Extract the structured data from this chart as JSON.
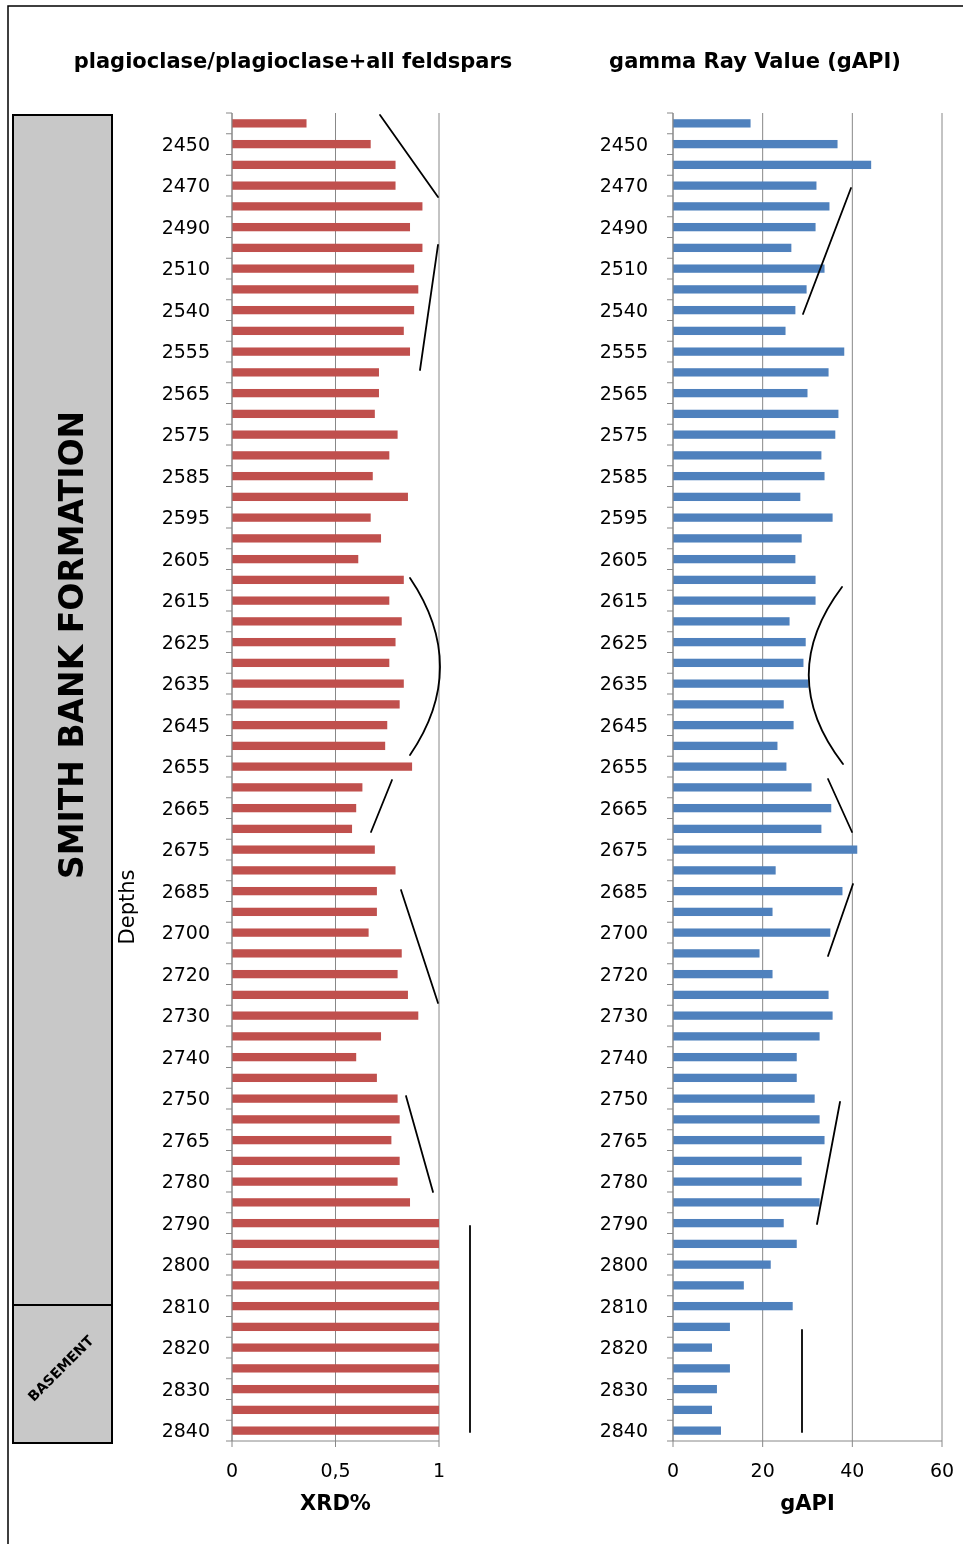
{
  "chart_data": [
    {
      "type": "bar",
      "orientation": "horizontal",
      "title": "plagioclase/plagioclase+all feldspars",
      "xlabel": "XRD%",
      "ylabel": "Depths",
      "color": "#c0504d",
      "grid": "x",
      "xlim": [
        0,
        1
      ],
      "xticks": [
        0,
        {
          "value": 0.5,
          "label": "0,5"
        },
        1
      ],
      "annotations": [
        "SMITH BANK FORMATION",
        "BASEMENT"
      ],
      "categories": [
        null,
        "2450",
        null,
        "2470",
        null,
        "2490",
        null,
        "2510",
        null,
        "2540",
        null,
        "2555",
        null,
        "2565",
        null,
        "2575",
        null,
        "2585",
        null,
        "2595",
        null,
        "2605",
        null,
        "2615",
        null,
        "2625",
        null,
        "2635",
        null,
        "2645",
        null,
        "2655",
        null,
        "2665",
        null,
        "2675",
        null,
        "2685",
        null,
        "2700",
        null,
        "2720",
        null,
        "2730",
        null,
        "2740",
        null,
        "2750",
        null,
        "2765",
        null,
        "2780",
        null,
        "2790",
        null,
        "2800",
        null,
        "2810",
        null,
        "2820",
        null,
        "2830",
        null,
        "2840"
      ],
      "values": [
        0.36,
        0.67,
        0.79,
        0.79,
        0.92,
        0.86,
        0.92,
        0.88,
        0.9,
        0.88,
        0.83,
        0.86,
        0.71,
        0.71,
        0.69,
        0.8,
        0.76,
        0.68,
        0.85,
        0.67,
        0.72,
        0.61,
        0.83,
        0.76,
        0.82,
        0.79,
        0.76,
        0.83,
        0.81,
        0.75,
        0.74,
        0.87,
        0.63,
        0.6,
        0.58,
        0.69,
        0.79,
        0.7,
        0.7,
        0.66,
        0.82,
        0.8,
        0.85,
        0.9,
        0.72,
        0.6,
        0.7,
        0.8,
        0.81,
        0.77,
        0.81,
        0.8,
        0.86,
        1,
        1,
        1,
        1,
        1,
        1,
        1,
        1,
        1,
        1,
        1
      ]
    },
    {
      "type": "bar",
      "orientation": "horizontal",
      "title": "gamma Ray Value (gAPI)",
      "xlabel": "gAPI",
      "color": "#4f81bd",
      "grid": "x",
      "xlim": [
        0,
        60
      ],
      "xticks": [
        0,
        20,
        40,
        60
      ],
      "categories": [
        null,
        "2450",
        null,
        "2470",
        null,
        "2490",
        null,
        "2510",
        null,
        "2540",
        null,
        "2555",
        null,
        "2565",
        null,
        "2575",
        null,
        "2585",
        null,
        "2595",
        null,
        "2605",
        null,
        "2615",
        null,
        "2625",
        null,
        "2635",
        null,
        "2645",
        null,
        "2655",
        null,
        "2665",
        null,
        "2675",
        null,
        "2685",
        null,
        "2700",
        null,
        "2720",
        null,
        "2730",
        null,
        "2740",
        null,
        "2750",
        null,
        "2765",
        null,
        "2780",
        null,
        "2790",
        null,
        "2800",
        null,
        "2810",
        null,
        "2820",
        null,
        "2830",
        null,
        "2840"
      ],
      "values": [
        17.3,
        36.7,
        44.2,
        32,
        34.9,
        31.8,
        26.4,
        33.8,
        29.8,
        27.3,
        25.1,
        38.2,
        34.7,
        30,
        36.9,
        36.2,
        33.1,
        33.8,
        28.4,
        35.6,
        28.7,
        27.3,
        31.8,
        31.8,
        26,
        29.6,
        29.1,
        30.2,
        24.7,
        26.9,
        23.3,
        25.3,
        30.9,
        35.3,
        33.1,
        41.1,
        22.9,
        37.8,
        22.2,
        35.1,
        19.3,
        22.2,
        34.7,
        35.6,
        32.7,
        27.6,
        27.6,
        31.6,
        32.7,
        33.8,
        28.7,
        28.7,
        32.7,
        24.7,
        27.6,
        21.8,
        15.8,
        26.7,
        12.7,
        8.7,
        12.7,
        9.8,
        8.7,
        10.7
      ]
    }
  ]
}
